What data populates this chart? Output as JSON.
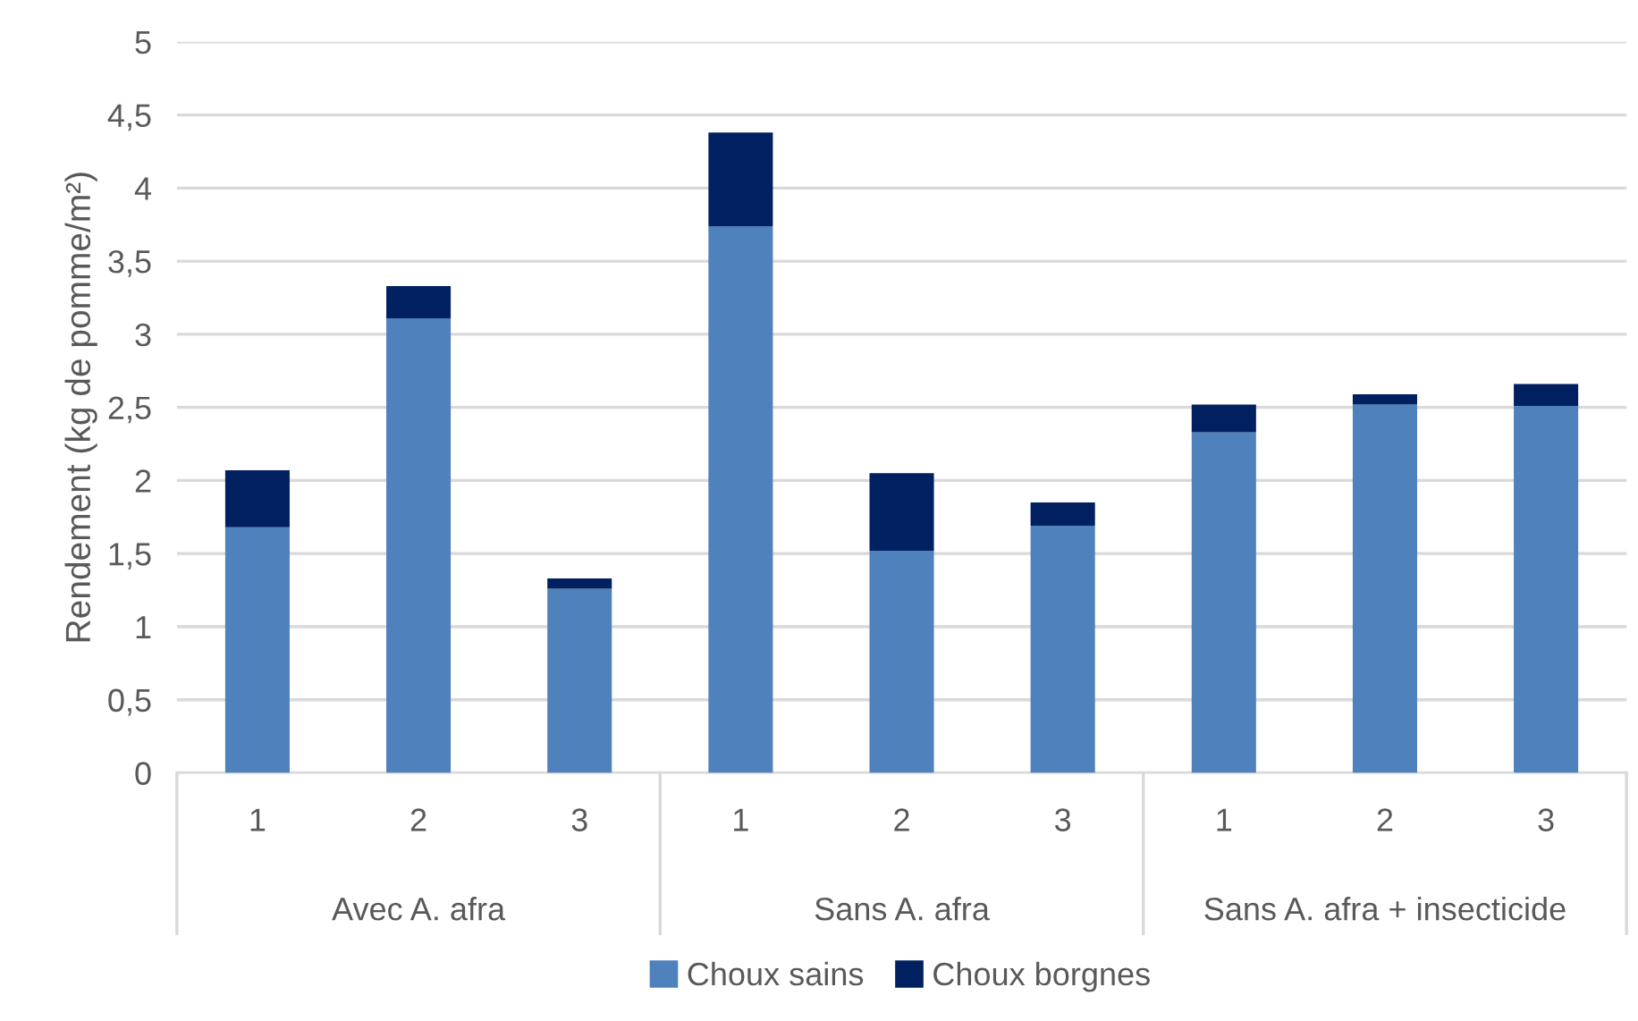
{
  "chart_data": {
    "type": "bar",
    "stacked": true,
    "ylabel": "Rendement (kg de pomme/m²)",
    "categories": [
      "1",
      "2",
      "3",
      "1",
      "2",
      "3",
      "1",
      "2",
      "3"
    ],
    "series": [
      {
        "name": "Choux sains",
        "color": "#4f81bd",
        "values": [
          1.68,
          3.11,
          1.26,
          3.74,
          1.52,
          1.69,
          2.33,
          2.52,
          2.51
        ]
      },
      {
        "name": "Choux borgnes",
        "color": "#002060",
        "values": [
          0.39,
          0.22,
          0.07,
          0.64,
          0.53,
          0.16,
          0.19,
          0.07,
          0.15
        ]
      }
    ],
    "annotations": [
      "Avec A. afra",
      "Sans A. afra",
      "Sans A. afra + insecticide"
    ],
    "ylim": [
      0,
      5
    ],
    "yticks": [
      {
        "value": 0,
        "label": "0"
      },
      {
        "value": 0.5,
        "label": "0,5"
      },
      {
        "value": 1,
        "label": "1"
      },
      {
        "value": 1.5,
        "label": "1,5"
      },
      {
        "value": 2,
        "label": "2"
      },
      {
        "value": 2.5,
        "label": "2,5"
      },
      {
        "value": 3,
        "label": "3"
      },
      {
        "value": 3.5,
        "label": "3,5"
      },
      {
        "value": 4,
        "label": "4"
      },
      {
        "value": 4.5,
        "label": "4,5"
      },
      {
        "value": 5,
        "label": "5"
      }
    ],
    "grid": "y",
    "legend": "bottom"
  }
}
